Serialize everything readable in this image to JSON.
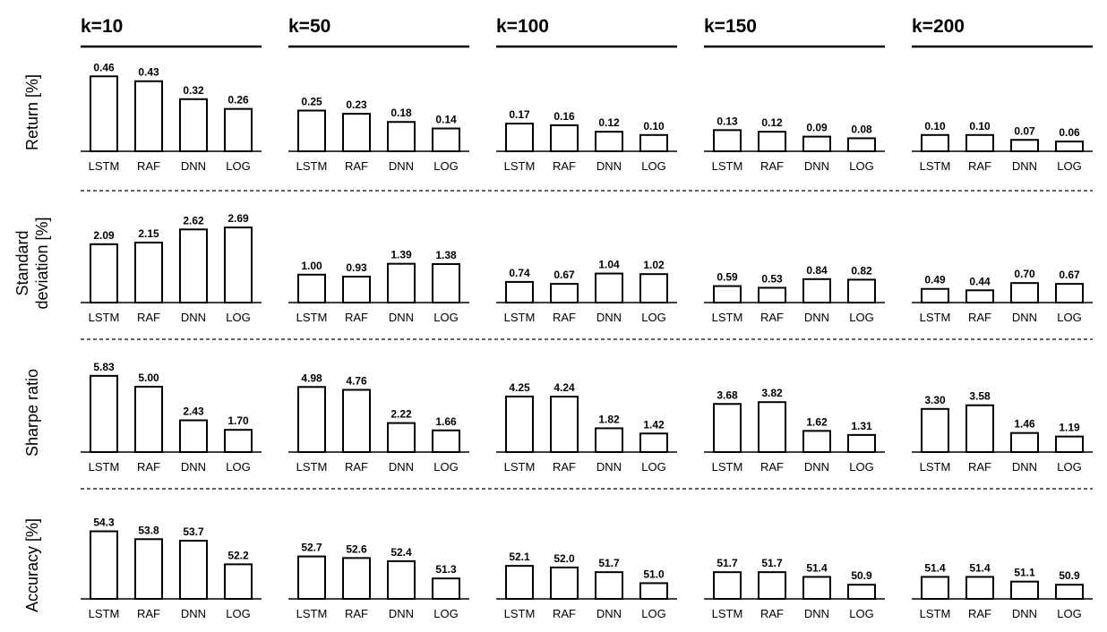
{
  "chart_data": {
    "type": "bar",
    "columns": [
      "k=10",
      "k=50",
      "k=100",
      "k=150",
      "k=200"
    ],
    "categories": [
      "LSTM",
      "RAF",
      "DNN",
      "LOG"
    ],
    "rows": [
      {
        "label_lines": [
          "Return [%]"
        ],
        "ylim": [
          0,
          0.5
        ],
        "values": [
          [
            0.46,
            0.43,
            0.32,
            0.26
          ],
          [
            0.25,
            0.23,
            0.18,
            0.14
          ],
          [
            0.17,
            0.16,
            0.12,
            0.1
          ],
          [
            0.13,
            0.12,
            0.09,
            0.08
          ],
          [
            0.1,
            0.1,
            0.07,
            0.06
          ]
        ],
        "labels": [
          [
            "0.46",
            "0.43",
            "0.32",
            "0.26"
          ],
          [
            "0.25",
            "0.23",
            "0.18",
            "0.14"
          ],
          [
            "0.17",
            "0.16",
            "0.12",
            "0.10"
          ],
          [
            "0.13",
            "0.12",
            "0.09",
            "0.08"
          ],
          [
            "0.10",
            "0.10",
            "0.07",
            "0.06"
          ]
        ]
      },
      {
        "label_lines": [
          "Standard",
          "deviation [%]"
        ],
        "ylim": [
          0,
          2.95
        ],
        "values": [
          [
            2.09,
            2.15,
            2.62,
            2.69
          ],
          [
            1.0,
            0.93,
            1.39,
            1.38
          ],
          [
            0.74,
            0.67,
            1.04,
            1.02
          ],
          [
            0.59,
            0.53,
            0.84,
            0.82
          ],
          [
            0.49,
            0.44,
            0.7,
            0.67
          ]
        ],
        "labels": [
          [
            "2.09",
            "2.15",
            "2.62",
            "2.69"
          ],
          [
            "1.00",
            "0.93",
            "1.39",
            "1.38"
          ],
          [
            "0.74",
            "0.67",
            "1.04",
            "1.02"
          ],
          [
            "0.59",
            "0.53",
            "0.84",
            "0.82"
          ],
          [
            "0.49",
            "0.44",
            "0.70",
            "0.67"
          ]
        ]
      },
      {
        "label_lines": [
          "Sharpe ratio"
        ],
        "ylim": [
          0,
          6.3
        ],
        "values": [
          [
            5.83,
            5.0,
            2.43,
            1.7
          ],
          [
            4.98,
            4.76,
            2.22,
            1.66
          ],
          [
            4.25,
            4.24,
            1.82,
            1.42
          ],
          [
            3.68,
            3.82,
            1.62,
            1.31
          ],
          [
            3.3,
            3.58,
            1.46,
            1.19
          ]
        ],
        "labels": [
          [
            "5.83",
            "5.00",
            "2.43",
            "1.70"
          ],
          [
            "4.98",
            "4.76",
            "2.22",
            "1.66"
          ],
          [
            "4.25",
            "4.24",
            "1.82",
            "1.42"
          ],
          [
            "3.68",
            "3.82",
            "1.62",
            "1.31"
          ],
          [
            "3.30",
            "3.58",
            "1.46",
            "1.19"
          ]
        ]
      },
      {
        "label_lines": [
          "Accuracy [%]"
        ],
        "ylim": [
          50.0,
          54.5
        ],
        "values": [
          [
            54.3,
            53.8,
            53.7,
            52.2
          ],
          [
            52.7,
            52.6,
            52.4,
            51.3
          ],
          [
            52.1,
            52.0,
            51.7,
            51.0
          ],
          [
            51.7,
            51.7,
            51.4,
            50.9
          ],
          [
            51.4,
            51.4,
            51.1,
            50.9
          ]
        ],
        "labels": [
          [
            "54.3",
            "53.8",
            "53.7",
            "52.2"
          ],
          [
            "52.7",
            "52.6",
            "52.4",
            "51.3"
          ],
          [
            "52.1",
            "52.0",
            "51.7",
            "51.0"
          ],
          [
            "51.7",
            "51.7",
            "51.4",
            "50.9"
          ],
          [
            "51.4",
            "51.4",
            "51.1",
            "50.9"
          ]
        ]
      }
    ],
    "grid": false,
    "legend": "none"
  }
}
